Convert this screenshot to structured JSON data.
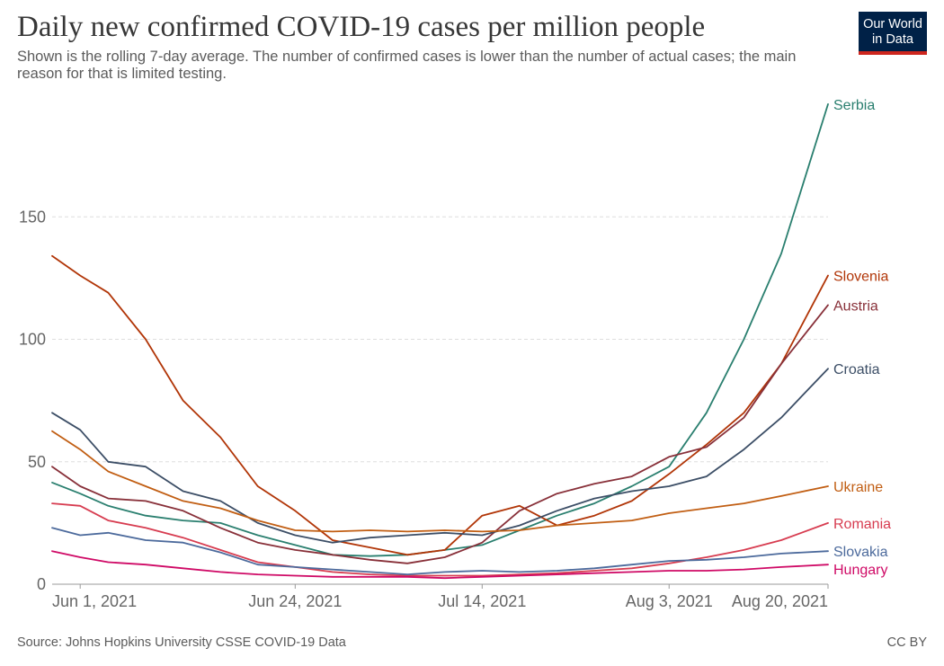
{
  "title": "Daily new confirmed COVID-19 cases per million people",
  "subtitle": "Shown is the rolling 7-day average. The number of confirmed cases is lower than the number of actual cases; the main reason for that is limited testing.",
  "logo": {
    "line1": "Our World",
    "line2": "in Data"
  },
  "footer": {
    "source": "Source: Johns Hopkins University CSSE COVID-19 Data",
    "license": "CC BY"
  },
  "chart_data": {
    "type": "line",
    "title": "Daily new confirmed COVID-19 cases per million people",
    "xlabel": "",
    "ylabel": "",
    "ylim": [
      0,
      200
    ],
    "yticks": [
      0,
      50,
      100,
      150
    ],
    "grid": "horizontal dashed",
    "legend": "labels at line ends (right)",
    "x": [
      "2021-05-29",
      "2021-06-01",
      "2021-06-04",
      "2021-06-08",
      "2021-06-12",
      "2021-06-16",
      "2021-06-20",
      "2021-06-24",
      "2021-06-28",
      "2021-07-02",
      "2021-07-06",
      "2021-07-10",
      "2021-07-14",
      "2021-07-18",
      "2021-07-22",
      "2021-07-26",
      "2021-07-30",
      "2021-08-03",
      "2021-08-07",
      "2021-08-11",
      "2021-08-15",
      "2021-08-20"
    ],
    "xtick_labels": [
      {
        "date": "2021-06-01",
        "label": "Jun 1, 2021"
      },
      {
        "date": "2021-06-24",
        "label": "Jun 24, 2021"
      },
      {
        "date": "2021-07-14",
        "label": "Jul 14, 2021"
      },
      {
        "date": "2021-08-03",
        "label": "Aug 3, 2021"
      },
      {
        "date": "2021-08-20",
        "label": "Aug 20, 2021"
      }
    ],
    "series": [
      {
        "name": "Serbia",
        "color": "#2a7f6f",
        "values": [
          41.5,
          37,
          32,
          28,
          26,
          25,
          20,
          16,
          12,
          11.5,
          12,
          14,
          16,
          22,
          28,
          33,
          40,
          48,
          70,
          100,
          135,
          196
        ]
      },
      {
        "name": "Slovenia",
        "color": "#b13507",
        "values": [
          134,
          126,
          119,
          100,
          75,
          60,
          40,
          30,
          18,
          15,
          12,
          14,
          28,
          32,
          24,
          28,
          34,
          45,
          57,
          70,
          90,
          126
        ]
      },
      {
        "name": "Austria",
        "color": "#883039",
        "values": [
          48,
          40,
          35,
          34,
          30,
          23,
          17,
          14,
          12,
          10,
          8.5,
          11,
          17,
          30,
          37,
          41,
          44,
          52,
          56,
          68,
          90,
          114
        ]
      },
      {
        "name": "Croatia",
        "color": "#3c4e66",
        "values": [
          70,
          63,
          50,
          48,
          38,
          34,
          25,
          20,
          17,
          19,
          20,
          21,
          20,
          24,
          30,
          35,
          38,
          40,
          44,
          55,
          68,
          88
        ]
      },
      {
        "name": "Ukraine",
        "color": "#c15e13",
        "values": [
          62.5,
          55,
          46,
          40,
          34,
          31,
          26,
          22,
          21.5,
          22,
          21.5,
          22,
          21.5,
          22,
          24,
          25,
          26,
          29,
          31,
          33,
          36,
          40
        ]
      },
      {
        "name": "Romania",
        "color": "#d73c50",
        "values": [
          33,
          32,
          26,
          23,
          19,
          14,
          9,
          7,
          5,
          4,
          3.5,
          3.5,
          3.5,
          4,
          4.5,
          5.5,
          6.5,
          8.5,
          11,
          14,
          18,
          25
        ]
      },
      {
        "name": "Slovakia",
        "color": "#4c6a9c",
        "values": [
          23,
          20,
          21,
          18,
          17,
          13,
          8,
          7,
          6,
          5,
          4,
          5,
          5.5,
          5,
          5.5,
          6.5,
          8,
          9.5,
          10,
          11,
          12.5,
          13.5
        ]
      },
      {
        "name": "Hungary",
        "color": "#cf0a66",
        "values": [
          13.5,
          11,
          9,
          8,
          6.5,
          5,
          4,
          3.5,
          3,
          3,
          3,
          2.5,
          3,
          3.5,
          4,
          4.5,
          5,
          5.5,
          5.5,
          6,
          7,
          8
        ]
      }
    ]
  }
}
